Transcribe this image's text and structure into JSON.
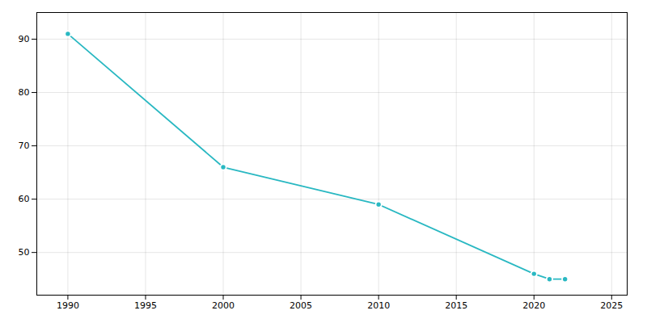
{
  "chart_data": {
    "type": "line",
    "x": [
      1990,
      2000,
      2010,
      2020,
      2021,
      2022
    ],
    "values": [
      91,
      66,
      59,
      46,
      45,
      45
    ],
    "color": "#29b8c2",
    "marker": "circle",
    "xlim": [
      1988,
      2026
    ],
    "ylim": [
      42,
      95
    ],
    "xticks": [
      1990,
      1995,
      2000,
      2005,
      2010,
      2015,
      2020,
      2025
    ],
    "yticks": [
      50,
      60,
      70,
      80,
      90
    ],
    "grid": true
  }
}
